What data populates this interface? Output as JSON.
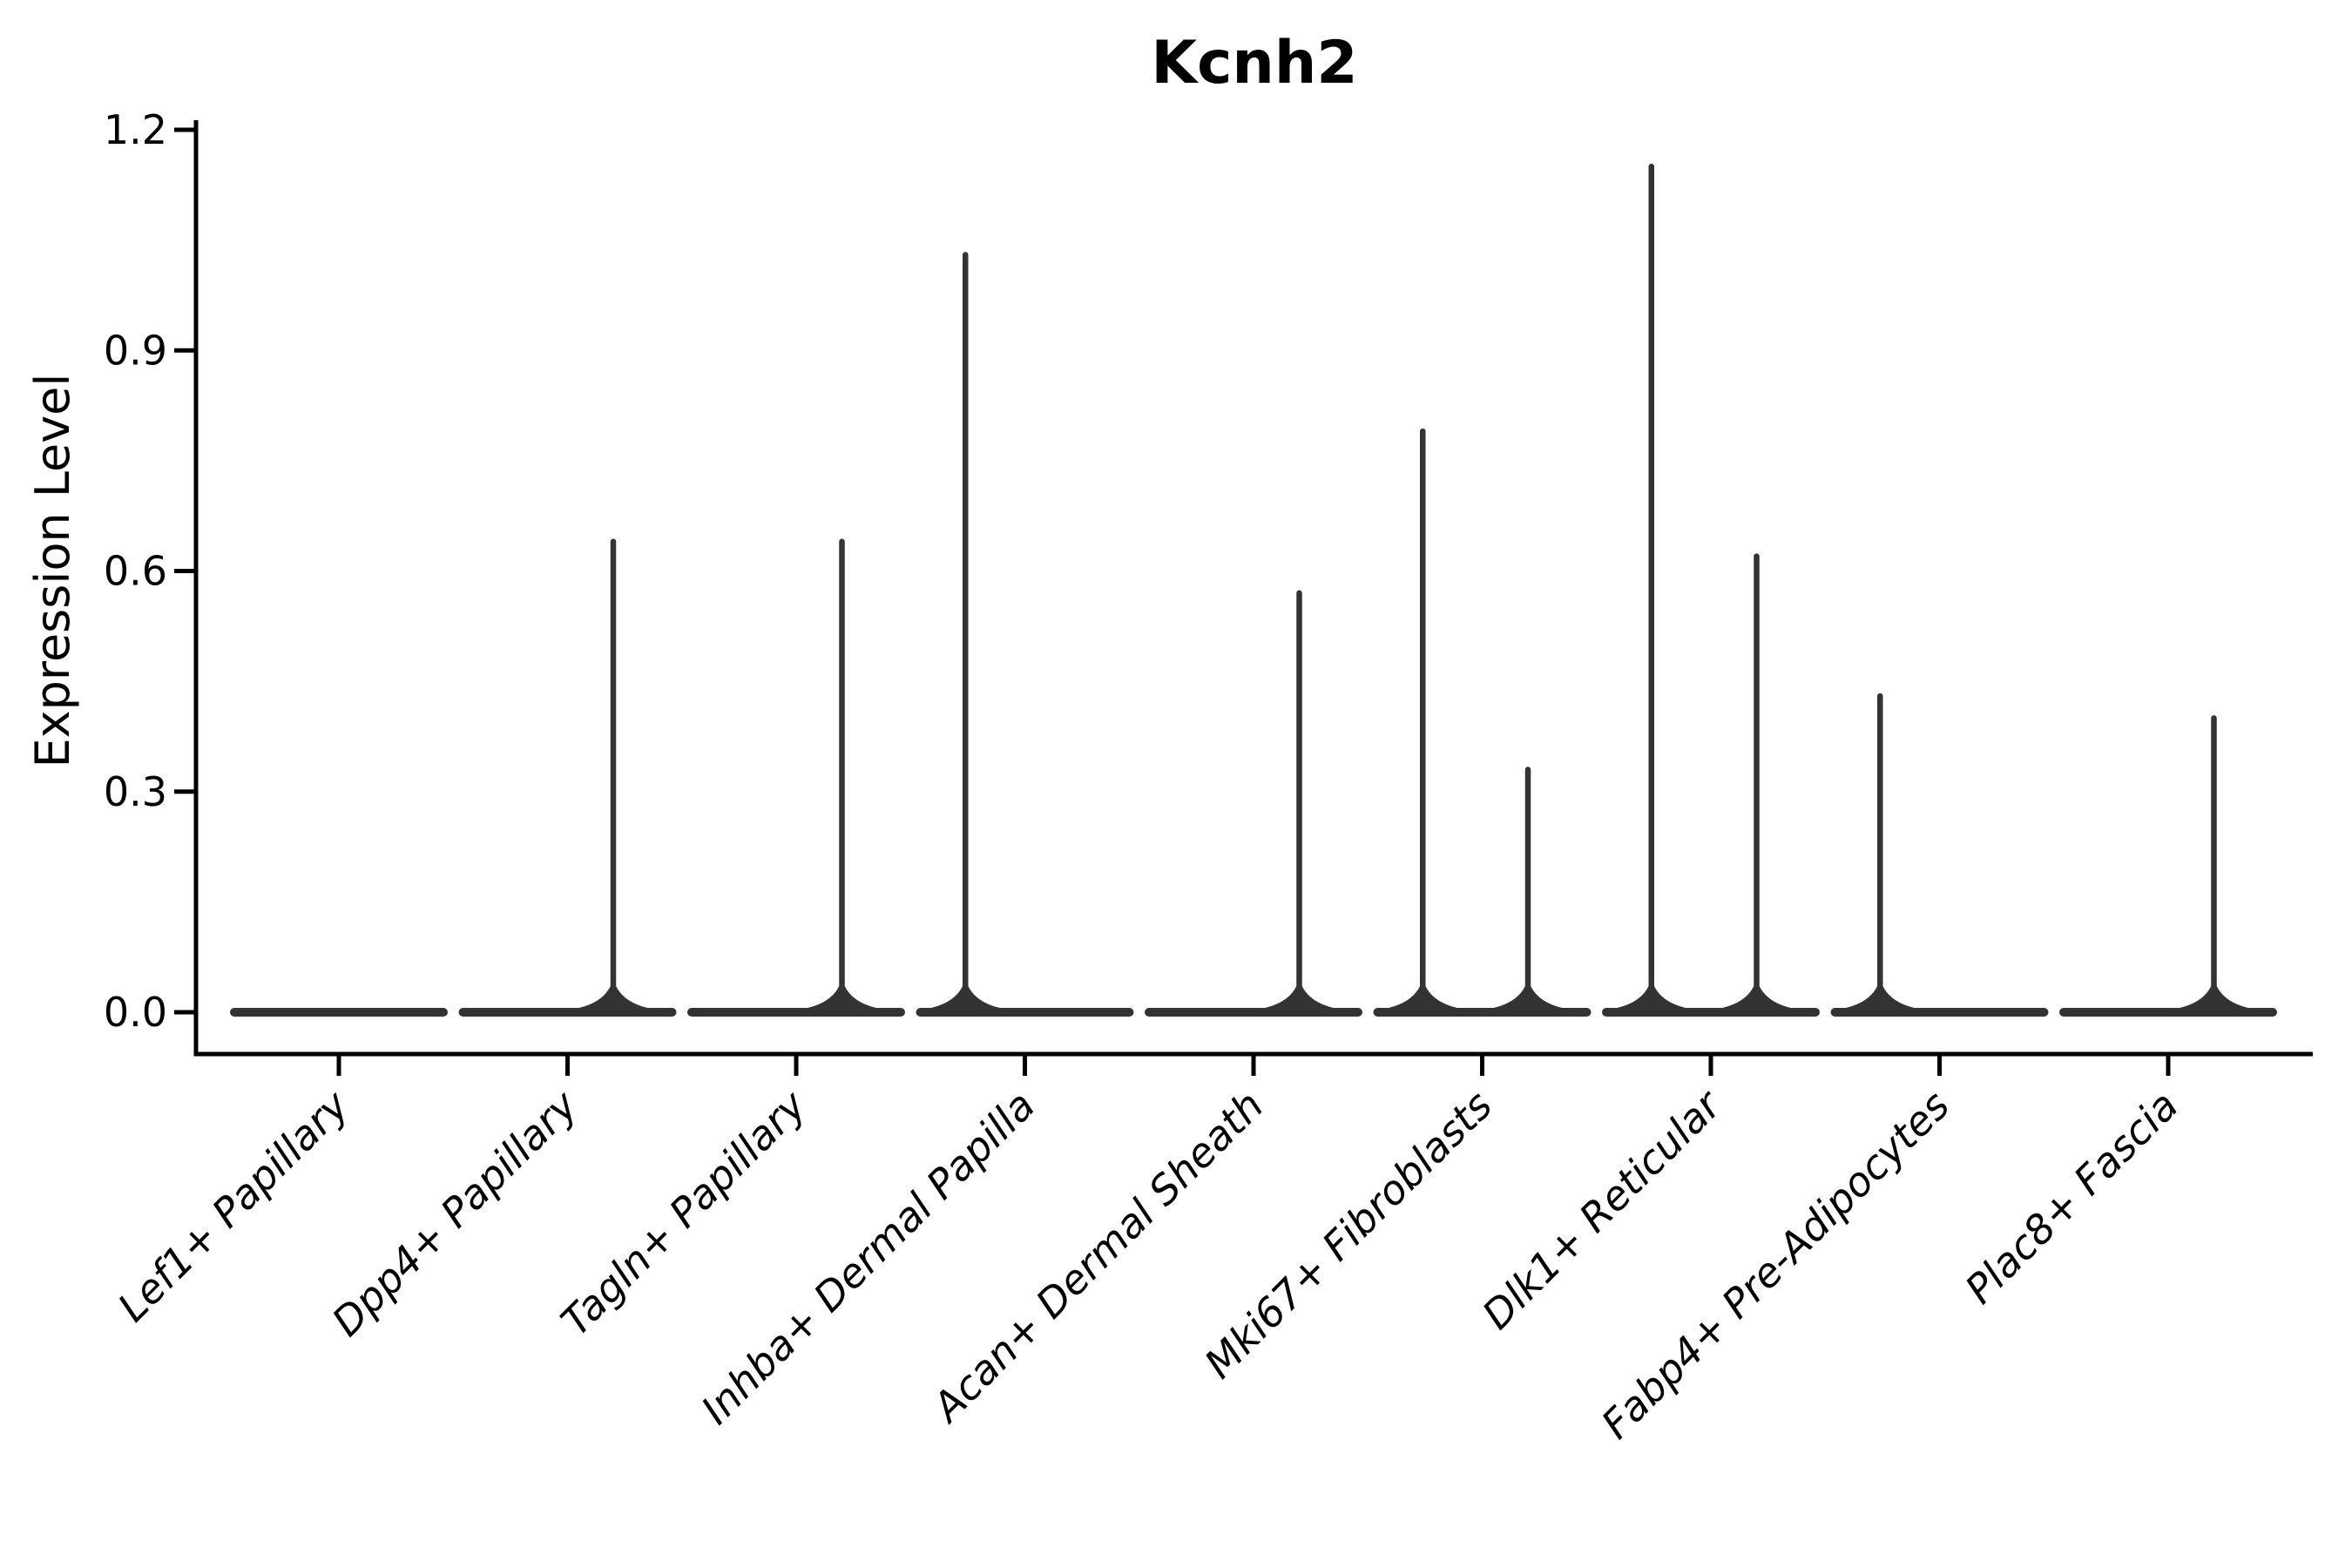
{
  "page": {
    "background": "#ffffff"
  },
  "chart_data": {
    "type": "violin",
    "title": "Kcnh2",
    "ylabel": "Expression Level",
    "xlabel": "",
    "ylim": [
      0,
      1.2
    ],
    "yticks": [
      "0.0",
      "0.3",
      "0.6",
      "0.9",
      "1.2"
    ],
    "ytick_values": [
      0.0,
      0.3,
      0.6,
      0.9,
      1.2
    ],
    "grid": false,
    "legend": null,
    "x_labels_rotation_deg": 45,
    "x_labels_italic": true,
    "categories": [
      "Lef1+ Papillary",
      "Dpp4+ Papillary",
      "Tagln+ Papillary",
      "Inhba+ Dermal Papilla",
      "Acan+ Dermal Sheath",
      "Mki67+ Fibroblasts",
      "Dlk1+ Reticular",
      "Fabp4+ Pre-Adipocytes",
      "Plac8+ Fascia"
    ],
    "violins": [
      {
        "category": "Lef1+ Papillary",
        "base_value": 0.0,
        "spikes": []
      },
      {
        "category": "Dpp4+ Papillary",
        "base_value": 0.0,
        "spikes": [
          {
            "offset_frac": 0.2,
            "max": 0.64
          }
        ]
      },
      {
        "category": "Tagln+ Papillary",
        "base_value": 0.0,
        "spikes": [
          {
            "offset_frac": 0.2,
            "max": 0.64
          }
        ]
      },
      {
        "category": "Inhba+ Dermal Papilla",
        "base_value": 0.0,
        "spikes": [
          {
            "offset_frac": -0.26,
            "max": 1.03
          }
        ]
      },
      {
        "category": "Acan+ Dermal Sheath",
        "base_value": 0.0,
        "spikes": [
          {
            "offset_frac": 0.2,
            "max": 0.57
          }
        ]
      },
      {
        "category": "Mki67+ Fibroblasts",
        "base_value": 0.0,
        "spikes": [
          {
            "offset_frac": -0.26,
            "max": 0.79
          },
          {
            "offset_frac": 0.2,
            "max": 0.33
          }
        ]
      },
      {
        "category": "Dlk1+ Reticular",
        "base_value": 0.0,
        "spikes": [
          {
            "offset_frac": -0.26,
            "max": 1.15
          },
          {
            "offset_frac": 0.2,
            "max": 0.62
          }
        ]
      },
      {
        "category": "Fabp4+ Pre-Adipocytes",
        "base_value": 0.0,
        "spikes": [
          {
            "offset_frac": -0.26,
            "max": 0.43
          }
        ]
      },
      {
        "category": "Plac8+ Fascia",
        "base_value": 0.0,
        "spikes": [
          {
            "offset_frac": 0.2,
            "max": 0.4
          }
        ]
      }
    ],
    "colors": {
      "violin": "#333333",
      "axis": "#000000",
      "text": "#000000",
      "background": "#ffffff"
    }
  }
}
